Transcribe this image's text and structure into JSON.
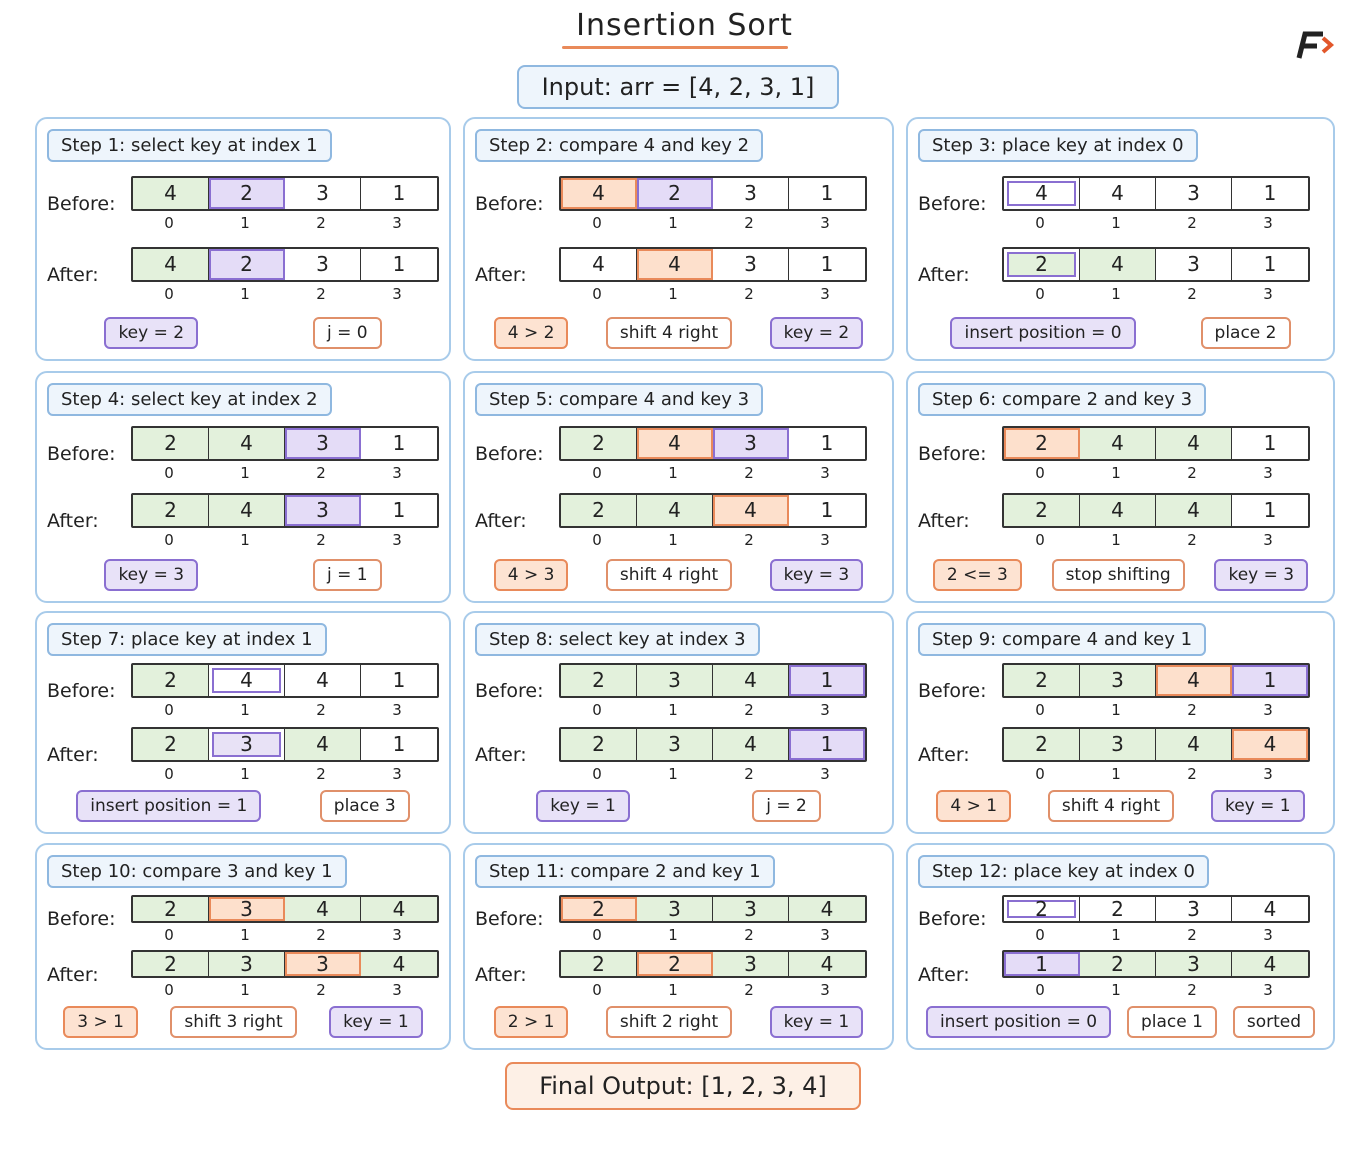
{
  "title": "Insertion Sort",
  "input": "Input: arr = [4, 2, 3, 1]",
  "final": "Final Output: [1, 2, 3, 4]",
  "before_label": "Before:",
  "after_label": "After:",
  "indices": [
    0,
    1,
    2,
    3
  ],
  "steps": [
    {
      "label": "Step 1: select key at index 1",
      "before": [
        4,
        2,
        3,
        1
      ],
      "before_marks": [
        "g",
        "p",
        "w",
        "w"
      ],
      "after": [
        4,
        2,
        3,
        1
      ],
      "after_marks": [
        "g",
        "p",
        "w",
        "w"
      ],
      "tags": [
        {
          "text": "key = 2",
          "style": "purple"
        },
        {
          "text": "j = 0",
          "style": "outline"
        }
      ]
    },
    {
      "label": "Step 2: compare 4 and key 2",
      "before": [
        4,
        2,
        3,
        1
      ],
      "before_marks": [
        "o",
        "p",
        "w",
        "w"
      ],
      "after": [
        4,
        4,
        3,
        1
      ],
      "after_marks": [
        "w",
        "o",
        "w",
        "w"
      ],
      "tags": [
        {
          "text": "4 > 2",
          "style": "orange"
        },
        {
          "text": "shift 4 right",
          "style": "outline"
        },
        {
          "text": "key = 2",
          "style": "purple"
        }
      ]
    },
    {
      "label": "Step 3: place key at index 0",
      "before": [
        4,
        4,
        3,
        1
      ],
      "before_marks": [
        "ow",
        "w",
        "w",
        "w"
      ],
      "after": [
        2,
        4,
        3,
        1
      ],
      "after_marks": [
        "gp",
        "g",
        "w",
        "w"
      ],
      "tags": [
        {
          "text": "insert position = 0",
          "style": "purple"
        },
        {
          "text": "place 2",
          "style": "outline"
        }
      ]
    },
    {
      "label": "Step 4: select key at index 2",
      "before": [
        2,
        4,
        3,
        1
      ],
      "before_marks": [
        "g",
        "g",
        "p",
        "w"
      ],
      "after": [
        2,
        4,
        3,
        1
      ],
      "after_marks": [
        "g",
        "g",
        "p",
        "w"
      ],
      "tags": [
        {
          "text": "key = 3",
          "style": "purple"
        },
        {
          "text": "j = 1",
          "style": "outline"
        }
      ]
    },
    {
      "label": "Step 5: compare 4 and key 3",
      "before": [
        2,
        4,
        3,
        1
      ],
      "before_marks": [
        "g",
        "o",
        "p",
        "w"
      ],
      "after": [
        2,
        4,
        4,
        1
      ],
      "after_marks": [
        "g",
        "g",
        "o",
        "w"
      ],
      "tags": [
        {
          "text": "4 > 3",
          "style": "orange"
        },
        {
          "text": "shift 4 right",
          "style": "outline"
        },
        {
          "text": "key = 3",
          "style": "purple"
        }
      ]
    },
    {
      "label": "Step 6: compare 2 and key 3",
      "before": [
        2,
        4,
        4,
        1
      ],
      "before_marks": [
        "o",
        "g",
        "g",
        "w"
      ],
      "after": [
        2,
        4,
        4,
        1
      ],
      "after_marks": [
        "g",
        "g",
        "g",
        "w"
      ],
      "tags": [
        {
          "text": "2 <= 3",
          "style": "orange"
        },
        {
          "text": "stop shifting",
          "style": "outline"
        },
        {
          "text": "key = 3",
          "style": "purple"
        }
      ]
    },
    {
      "label": "Step 7: place key at index 1",
      "before": [
        2,
        4,
        4,
        1
      ],
      "before_marks": [
        "g",
        "ow",
        "w",
        "w"
      ],
      "after": [
        2,
        3,
        4,
        1
      ],
      "after_marks": [
        "g",
        "pp",
        "g",
        "w"
      ],
      "tags": [
        {
          "text": "insert position = 1",
          "style": "purple"
        },
        {
          "text": "place 3",
          "style": "outline"
        }
      ]
    },
    {
      "label": "Step 8: select key at index 3",
      "before": [
        2,
        3,
        4,
        1
      ],
      "before_marks": [
        "g",
        "g",
        "g",
        "p"
      ],
      "after": [
        2,
        3,
        4,
        1
      ],
      "after_marks": [
        "g",
        "g",
        "g",
        "p"
      ],
      "tags": [
        {
          "text": "key = 1",
          "style": "purple"
        },
        {
          "text": "j = 2",
          "style": "outline"
        }
      ]
    },
    {
      "label": "Step 9: compare 4 and key 1",
      "before": [
        2,
        3,
        4,
        1
      ],
      "before_marks": [
        "g",
        "g",
        "o",
        "p"
      ],
      "after": [
        2,
        3,
        4,
        4
      ],
      "after_marks": [
        "g",
        "g",
        "g",
        "o"
      ],
      "tags": [
        {
          "text": "4 > 1",
          "style": "orange"
        },
        {
          "text": "shift 4 right",
          "style": "outline"
        },
        {
          "text": "key = 1",
          "style": "purple"
        }
      ]
    },
    {
      "label": "Step 10: compare 3 and key 1",
      "before": [
        2,
        3,
        4,
        4
      ],
      "before_marks": [
        "g",
        "o",
        "g",
        "g"
      ],
      "after": [
        2,
        3,
        3,
        4
      ],
      "after_marks": [
        "g",
        "g",
        "o",
        "g"
      ],
      "tags": [
        {
          "text": "3 > 1",
          "style": "orange"
        },
        {
          "text": "shift 3 right",
          "style": "outline"
        },
        {
          "text": "key = 1",
          "style": "purple"
        }
      ]
    },
    {
      "label": "Step 11: compare 2 and key 1",
      "before": [
        2,
        3,
        3,
        4
      ],
      "before_marks": [
        "o",
        "g",
        "g",
        "g"
      ],
      "after": [
        2,
        2,
        3,
        4
      ],
      "after_marks": [
        "g",
        "o",
        "g",
        "g"
      ],
      "tags": [
        {
          "text": "2 > 1",
          "style": "orange"
        },
        {
          "text": "shift 2 right",
          "style": "outline"
        },
        {
          "text": "key = 1",
          "style": "purple"
        }
      ]
    },
    {
      "label": "Step 12: place key at index 0",
      "before": [
        2,
        2,
        3,
        4
      ],
      "before_marks": [
        "ow",
        "w",
        "w",
        "w"
      ],
      "after": [
        1,
        2,
        3,
        4
      ],
      "after_marks": [
        "p",
        "g",
        "g",
        "g"
      ],
      "tags": [
        {
          "text": "insert position = 0",
          "style": "purple"
        },
        {
          "text": "place 1",
          "style": "outline"
        },
        {
          "text": "sorted",
          "style": "outline"
        }
      ]
    }
  ]
}
